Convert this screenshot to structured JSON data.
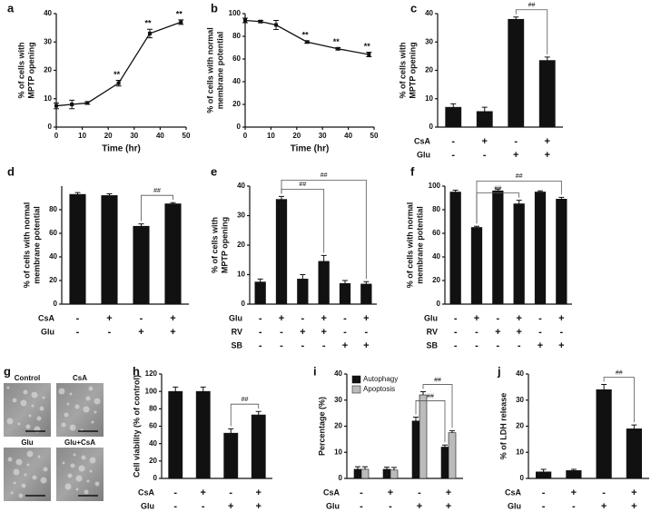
{
  "chart_data": [
    {
      "type": "line",
      "label": "a",
      "ylabel": [
        "% of cells with",
        "MPTP opening"
      ],
      "xlabel": "Time (hr)",
      "x": [
        0,
        6,
        12,
        24,
        36,
        48
      ],
      "values": [
        7.5,
        8,
        8.5,
        15.5,
        33,
        37
      ],
      "errors": [
        1,
        1.5,
        0.5,
        1,
        1.5,
        0.8
      ],
      "point_labels": [
        null,
        null,
        null,
        "**",
        "**",
        "**"
      ],
      "color": "#111111",
      "xlim": [
        0,
        50
      ],
      "xticks": [
        0,
        10,
        20,
        30,
        40,
        50
      ],
      "ylim": [
        0,
        40
      ],
      "yticks": [
        0,
        10,
        20,
        30,
        40
      ]
    },
    {
      "type": "line",
      "label": "b",
      "ylabel": [
        "% of cells with normal",
        "membrane potential"
      ],
      "xlabel": "Time (hr)",
      "x": [
        0,
        6,
        12,
        24,
        36,
        48
      ],
      "values": [
        94,
        93,
        90,
        75,
        69,
        64
      ],
      "errors": [
        2,
        1,
        4,
        1,
        1,
        2
      ],
      "point_labels": [
        null,
        null,
        null,
        "**",
        "**",
        "**"
      ],
      "color": "#111111",
      "xlim": [
        0,
        50
      ],
      "xticks": [
        0,
        10,
        20,
        30,
        40,
        50
      ],
      "ylim": [
        0,
        100
      ],
      "yticks": [
        0,
        20,
        40,
        60,
        80,
        100
      ]
    },
    {
      "type": "bar",
      "label": "c",
      "ylabel": [
        "% of cells with",
        "MPTP opening"
      ],
      "values": [
        7,
        5.5,
        38,
        23.5
      ],
      "errors": [
        1.2,
        1.5,
        0.8,
        1.2
      ],
      "color": "#111111",
      "conditions": [
        {
          "name": "CsA",
          "signs": [
            "-",
            "+",
            "-",
            "+"
          ]
        },
        {
          "name": "Glu",
          "signs": [
            "-",
            "-",
            "+",
            "+"
          ]
        }
      ],
      "brackets": [
        {
          "text": "##",
          "bars": [
            2,
            3
          ]
        }
      ],
      "ylim": [
        0,
        40
      ],
      "yticks": [
        0,
        10,
        20,
        30,
        40
      ]
    },
    {
      "type": "bar",
      "label": "d",
      "ylabel": [
        "% of cells with normal",
        "membrane potential"
      ],
      "values": [
        93,
        92,
        66,
        85
      ],
      "errors": [
        1.5,
        1.5,
        2,
        1
      ],
      "color": "#111111",
      "conditions": [
        {
          "name": "CsA",
          "signs": [
            "-",
            "+",
            "-",
            "+"
          ]
        },
        {
          "name": "Glu",
          "signs": [
            "-",
            "-",
            "+",
            "+"
          ]
        }
      ],
      "brackets": [
        {
          "text": "##",
          "bars": [
            2,
            3
          ]
        }
      ],
      "ylim": [
        0,
        100
      ],
      "yticks": [
        0,
        20,
        40,
        60,
        80
      ]
    },
    {
      "type": "bar",
      "label": "e",
      "ylabel": [
        "% of cells with",
        "MPTP opening"
      ],
      "values": [
        7.5,
        35.5,
        8.5,
        14.5,
        7,
        6.8
      ],
      "errors": [
        1,
        1,
        1.5,
        2,
        1,
        0.8
      ],
      "color": "#111111",
      "conditions": [
        {
          "name": "Glu",
          "signs": [
            "-",
            "+",
            "-",
            "+",
            "-",
            "+"
          ]
        },
        {
          "name": "RV",
          "signs": [
            "-",
            "-",
            "+",
            "+",
            "-",
            "-"
          ]
        },
        {
          "name": "SB",
          "signs": [
            "-",
            "-",
            "-",
            "-",
            "+",
            "+"
          ]
        }
      ],
      "brackets": [
        {
          "text": "##",
          "bars": [
            1,
            3
          ]
        },
        {
          "text": "##",
          "bars": [
            1,
            5
          ]
        }
      ],
      "ylim": [
        0,
        40
      ],
      "yticks": [
        0,
        10,
        20,
        30,
        40
      ]
    },
    {
      "type": "bar",
      "label": "f",
      "ylabel": [
        "% of cells with normal",
        "membrane potential"
      ],
      "values": [
        95,
        65,
        96,
        85,
        95,
        89
      ],
      "errors": [
        1.5,
        1,
        1.5,
        3,
        1,
        1.5
      ],
      "color": "#111111",
      "conditions": [
        {
          "name": "Glu",
          "signs": [
            "-",
            "+",
            "-",
            "+",
            "-",
            "+"
          ]
        },
        {
          "name": "RV",
          "signs": [
            "-",
            "-",
            "+",
            "+",
            "-",
            "-"
          ]
        },
        {
          "name": "SB",
          "signs": [
            "-",
            "-",
            "-",
            "-",
            "+",
            "+"
          ]
        }
      ],
      "brackets": [
        {
          "text": "##",
          "bars": [
            1,
            3
          ]
        },
        {
          "text": "##",
          "bars": [
            1,
            5
          ]
        }
      ],
      "ylim": [
        0,
        100
      ],
      "yticks": [
        0,
        20,
        40,
        60,
        80,
        100
      ]
    },
    {
      "type": "image",
      "label": "g",
      "panels": [
        "Control",
        "CsA",
        "Glu",
        "Glu+CsA"
      ]
    },
    {
      "type": "bar",
      "label": "h",
      "ylabel": [
        "Cell viability (% of control)"
      ],
      "values": [
        100,
        100,
        52,
        73
      ],
      "errors": [
        5,
        5,
        5,
        4
      ],
      "color": "#111111",
      "conditions": [
        {
          "name": "CsA",
          "signs": [
            "-",
            "+",
            "-",
            "+"
          ]
        },
        {
          "name": "Glu",
          "signs": [
            "-",
            "-",
            "+",
            "+"
          ]
        }
      ],
      "brackets": [
        {
          "text": "##",
          "bars": [
            2,
            3
          ]
        }
      ],
      "ylim": [
        0,
        120
      ],
      "yticks": [
        0,
        20,
        40,
        60,
        80,
        100,
        120
      ]
    },
    {
      "type": "grouped-bar",
      "label": "i",
      "ylabel": [
        "Percentage (%)"
      ],
      "series": [
        {
          "name": "Autophagy",
          "color": "#111111",
          "values": [
            3.5,
            3.5,
            22,
            12
          ],
          "errors": [
            1,
            0.8,
            1.5,
            0.8
          ]
        },
        {
          "name": "Apoptosis",
          "color": "#bbbbbb",
          "values": [
            3.5,
            3.2,
            32,
            17.5
          ],
          "errors": [
            1,
            1,
            1.2,
            0.8
          ]
        }
      ],
      "conditions": [
        {
          "name": "CsA",
          "signs": [
            "-",
            "+",
            "-",
            "+"
          ]
        },
        {
          "name": "Glu",
          "signs": [
            "-",
            "-",
            "+",
            "+"
          ]
        }
      ],
      "brackets": [
        {
          "text": "##",
          "series": 1,
          "bars": [
            2,
            3
          ]
        },
        {
          "text": "##",
          "series": 0,
          "bars": [
            2,
            3
          ]
        }
      ],
      "legend": "upper-left",
      "ylim": [
        0,
        40
      ],
      "yticks": [
        0,
        10,
        20,
        30,
        40
      ]
    },
    {
      "type": "bar",
      "label": "j",
      "ylabel": [
        "% of LDH release"
      ],
      "values": [
        2.5,
        3,
        34,
        19
      ],
      "errors": [
        1,
        0.5,
        2,
        1.5
      ],
      "color": "#111111",
      "conditions": [
        {
          "name": "CsA",
          "signs": [
            "-",
            "+",
            "-",
            "+"
          ]
        },
        {
          "name": "Glu",
          "signs": [
            "-",
            "-",
            "+",
            "+"
          ]
        }
      ],
      "brackets": [
        {
          "text": "##",
          "bars": [
            2,
            3
          ]
        }
      ],
      "ylim": [
        0,
        40
      ],
      "yticks": [
        0,
        10,
        20,
        30,
        40
      ]
    }
  ]
}
